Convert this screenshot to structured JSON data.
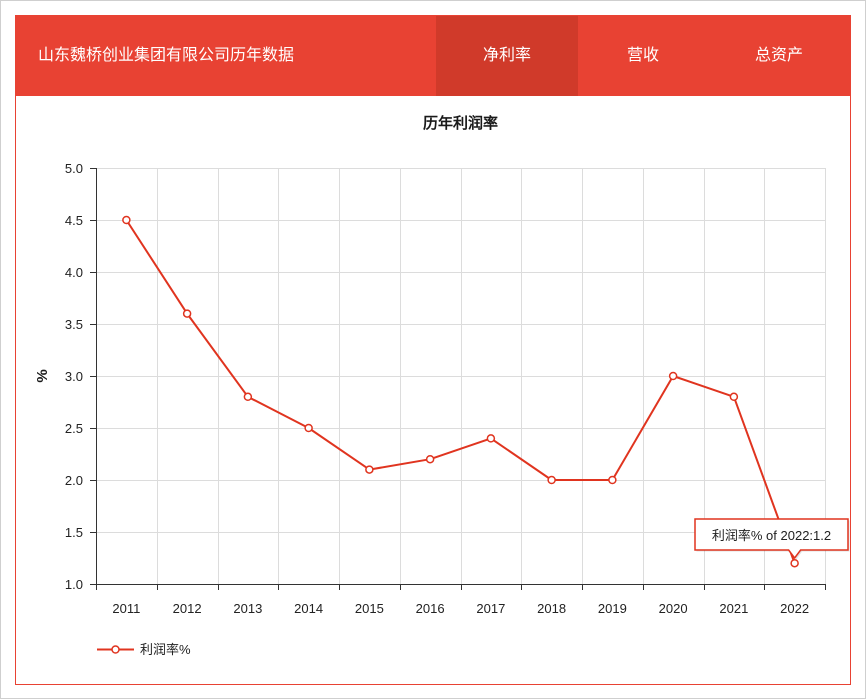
{
  "header": {
    "title": "山东魏桥创业集团有限公司历年数据",
    "tabs": [
      {
        "label": "净利率",
        "active": true
      },
      {
        "label": "营收",
        "active": false
      },
      {
        "label": "总资产",
        "active": false
      }
    ]
  },
  "colors": {
    "header_bg": "#e84233",
    "active_tab_bg": "#d03a2a",
    "border": "#e84233",
    "series": "#e0341f"
  },
  "chart_data": {
    "type": "line",
    "title": "历年利润率",
    "ylabel": "%",
    "categories": [
      "2011",
      "2012",
      "2013",
      "2014",
      "2015",
      "2016",
      "2017",
      "2018",
      "2019",
      "2020",
      "2021",
      "2022"
    ],
    "series": [
      {
        "name": "利润率%",
        "values": [
          4.5,
          3.6,
          2.8,
          2.5,
          2.1,
          2.2,
          2.4,
          2.0,
          2.0,
          3.0,
          2.8,
          1.2
        ]
      }
    ],
    "ylim": [
      1.0,
      5.0
    ],
    "yticks": [
      "1.0",
      "1.5",
      "2.0",
      "2.5",
      "3.0",
      "3.5",
      "4.0",
      "4.5",
      "5.0"
    ],
    "grid": true,
    "legend": "bottom-left",
    "tooltip": {
      "text": "利润率% of 2022:1.2"
    }
  }
}
